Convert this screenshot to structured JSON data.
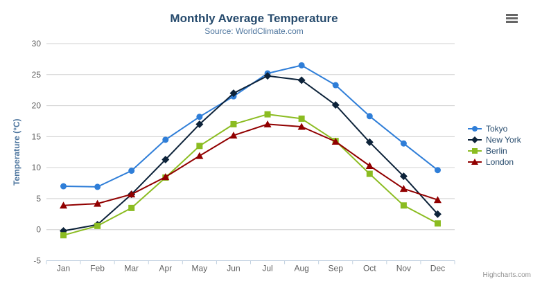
{
  "header": {
    "title": "Monthly Average Temperature",
    "subtitle": "Source: WorldClimate.com"
  },
  "credits": {
    "label": "Highcharts.com"
  },
  "export_button": {
    "icon": "hamburger-icon",
    "color": "#666666"
  },
  "chart_data": {
    "type": "line",
    "title": "Monthly Average Temperature",
    "subtitle": "Source: WorldClimate.com",
    "xlabel": "",
    "ylabel": "Temperature (°C)",
    "categories": [
      "Jan",
      "Feb",
      "Mar",
      "Apr",
      "May",
      "Jun",
      "Jul",
      "Aug",
      "Sep",
      "Oct",
      "Nov",
      "Dec"
    ],
    "ylim": [
      -5,
      30
    ],
    "ytick_step": 5,
    "grid": true,
    "legend_position": "right",
    "series": [
      {
        "name": "Tokyo",
        "color": "#2f7ed8",
        "marker": "circle",
        "values": [
          7.0,
          6.9,
          9.5,
          14.5,
          18.2,
          21.5,
          25.2,
          26.5,
          23.3,
          18.3,
          13.9,
          9.6
        ]
      },
      {
        "name": "New York",
        "color": "#0d233a",
        "marker": "diamond",
        "values": [
          -0.2,
          0.8,
          5.7,
          11.3,
          17.0,
          22.0,
          24.8,
          24.1,
          20.1,
          14.1,
          8.6,
          2.5
        ]
      },
      {
        "name": "Berlin",
        "color": "#8bbc21",
        "marker": "square",
        "values": [
          -0.9,
          0.6,
          3.5,
          8.4,
          13.5,
          17.0,
          18.6,
          17.9,
          14.3,
          9.0,
          3.9,
          1.0
        ]
      },
      {
        "name": "London",
        "color": "#910000",
        "marker": "triangle",
        "values": [
          3.9,
          4.2,
          5.7,
          8.5,
          11.9,
          15.2,
          17.0,
          16.6,
          14.2,
          10.3,
          6.6,
          4.8
        ]
      }
    ]
  },
  "colors": {
    "title": "#274b6d",
    "subtitle": "#4d759e",
    "axis_label": "#606060",
    "axis_title": "#4d759e",
    "grid": "#d0d0d0",
    "axis_line": "#c0d0e0",
    "legend_text": "#274b6d",
    "credits": "#909090"
  }
}
